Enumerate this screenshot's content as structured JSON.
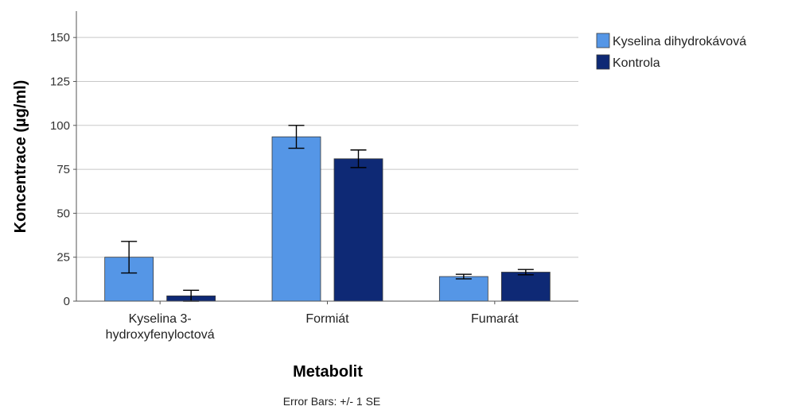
{
  "chart_data": {
    "type": "bar",
    "categories": [
      [
        "Kyselina 3-",
        "hydroxyfenyloctová"
      ],
      [
        "Formiát"
      ],
      [
        "Fumarát"
      ]
    ],
    "series": [
      {
        "name": "Kyselina dihydrokávová",
        "color": "#5596e6",
        "values": [
          25,
          93.5,
          14
        ],
        "error": [
          9,
          6.5,
          1.3
        ]
      },
      {
        "name": "Kontrola",
        "color": "#0e2975",
        "values": [
          3,
          81,
          16.5
        ],
        "error": [
          3.2,
          5,
          1.5
        ]
      }
    ],
    "xlabel": "Metabolit",
    "ylabel": "Koncentrace (µg/ml)",
    "ylim": [
      0,
      165
    ],
    "yticks": [
      0,
      25,
      50,
      75,
      100,
      125,
      150
    ],
    "grid": true,
    "legend_position": "top-right",
    "footnote": "Error Bars: +/- 1 SE"
  }
}
